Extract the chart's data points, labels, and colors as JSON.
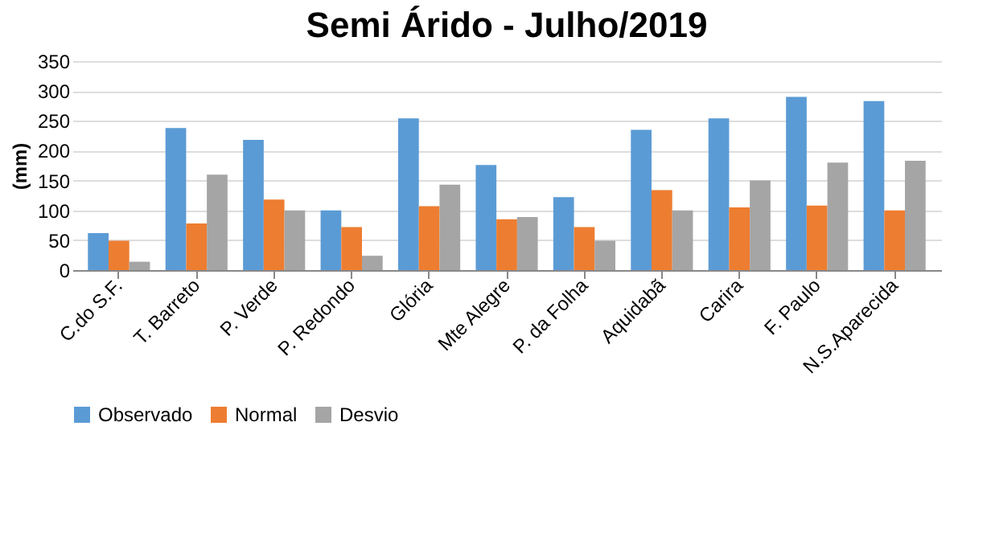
{
  "chart_data": {
    "type": "bar",
    "title": "Semi Árido - Julho/2019",
    "ylabel": "(mm)",
    "categories": [
      "C.do S.F.",
      "T. Barreto",
      "P. Verde",
      "P. Redondo",
      "Glória",
      "Mte Alegre",
      "P. da Folha",
      "Aquidabã",
      "Carira",
      "F. Paulo",
      "N.S.Aparecida"
    ],
    "series": [
      {
        "name": "Observado",
        "color": "#5b9bd5",
        "values": [
          62,
          238,
          218,
          100,
          254,
          176,
          122,
          235,
          254,
          290,
          283
        ]
      },
      {
        "name": "Normal",
        "color": "#ed7d31",
        "values": [
          49,
          78,
          118,
          72,
          107,
          85,
          72,
          134,
          105,
          108,
          100
        ]
      },
      {
        "name": "Desvio",
        "color": "#a5a5a5",
        "values": [
          14,
          160,
          100,
          24,
          143,
          89,
          49,
          100,
          150,
          180,
          183
        ]
      }
    ],
    "ylim": [
      0,
      350
    ],
    "yticks": [
      0,
      50,
      100,
      150,
      200,
      250,
      300,
      350
    ],
    "grid": "y",
    "legend": "bottom"
  }
}
